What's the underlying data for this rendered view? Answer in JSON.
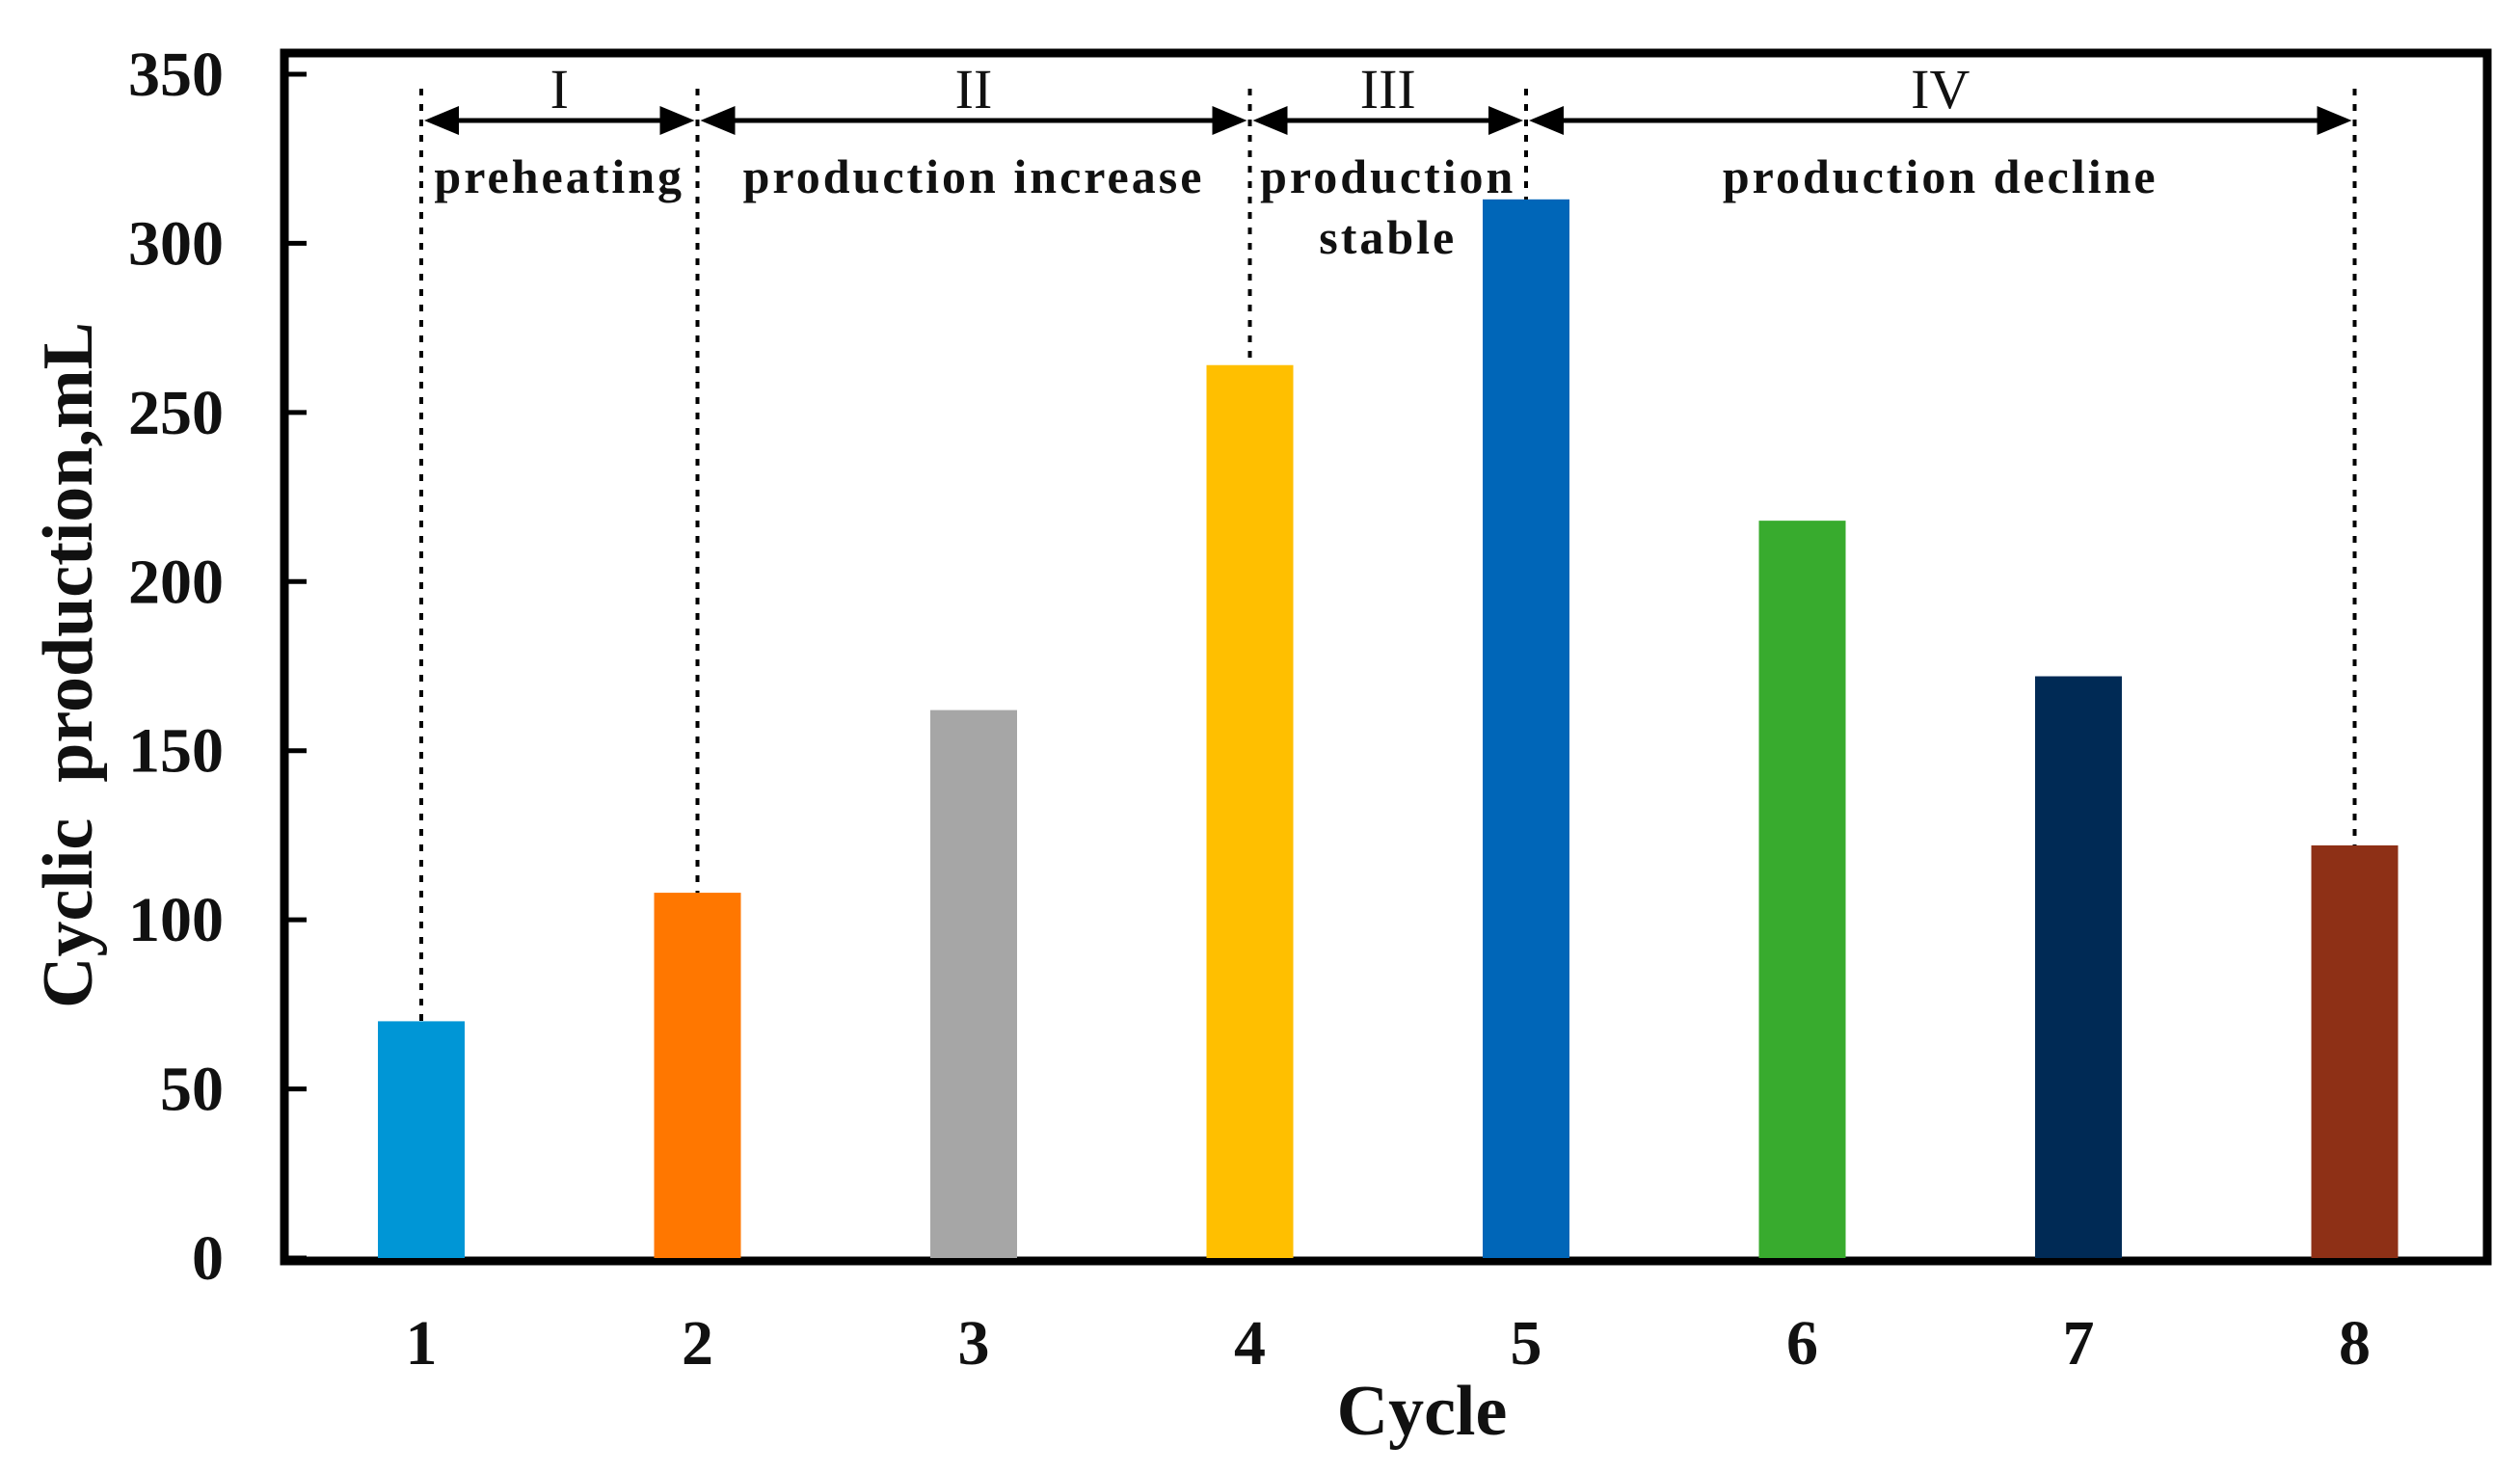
{
  "chart_data": {
    "type": "bar",
    "title": "",
    "xlabel": "Cycle",
    "ylabel": "Cyclic  production,mL",
    "categories": [
      "1",
      "2",
      "3",
      "4",
      "5",
      "6",
      "7",
      "8"
    ],
    "values": [
      70,
      108,
      162,
      264,
      313,
      218,
      172,
      122
    ],
    "bar_colors": [
      "#0096D6",
      "#FF7700",
      "#A6A6A6",
      "#FFBF00",
      "#0066B8",
      "#38AB2E",
      "#002A55",
      "#8E3016"
    ],
    "ylim": [
      0,
      350
    ],
    "yticks": [
      0,
      50,
      100,
      150,
      200,
      250,
      300,
      350
    ],
    "grid": false,
    "phase_boundaries": [
      1,
      2,
      4,
      5,
      8
    ],
    "phases": [
      {
        "numeral": "I",
        "label": [
          "preheating"
        ],
        "from": 1,
        "to": 2
      },
      {
        "numeral": "II",
        "label": [
          "production increase"
        ],
        "from": 2,
        "to": 4
      },
      {
        "numeral": "III",
        "label": [
          "production",
          "stable"
        ],
        "from": 4,
        "to": 5
      },
      {
        "numeral": "IV",
        "label": [
          "production decline"
        ],
        "from": 5,
        "to": 8
      }
    ]
  }
}
